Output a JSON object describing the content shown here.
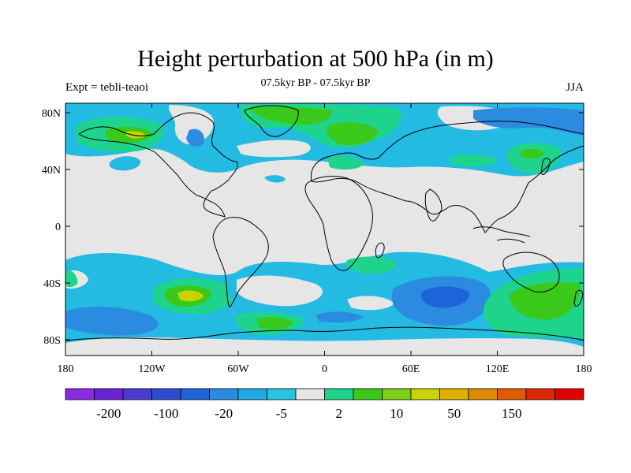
{
  "title": "Height perturbation at 500 hPa (in m)",
  "subtitle": "07.5kyr BP - 07.5kyr BP",
  "left_label": "Expt = tebli-teaoi",
  "right_label": "JJA",
  "y_ticks": [
    "80N",
    "40N",
    "0",
    "40S",
    "80S"
  ],
  "x_ticks": [
    "180",
    "120W",
    "60W",
    "0",
    "60E",
    "120E",
    "180"
  ],
  "colorbar": {
    "colors": [
      "#8a2be2",
      "#6a24d6",
      "#4b3bcf",
      "#2f4bd0",
      "#1e64d8",
      "#2b8be0",
      "#23a8e6",
      "#26c4e0",
      "#e6e6e6",
      "#1ed48c",
      "#3ac81a",
      "#7dcd14",
      "#c7d400",
      "#e0b000",
      "#e08a00",
      "#e05a00",
      "#e02800",
      "#e00000"
    ],
    "labels": [
      "-200",
      "-100",
      "-20",
      "-5",
      "2",
      "10",
      "50",
      "150"
    ]
  },
  "palette": {
    "cyan": "#24bbe2",
    "blue": "#2b8be0",
    "darkblue": "#1e64d8",
    "green": "#1ed48c",
    "lime": "#3ac81a",
    "yellowgreen": "#7dcd14",
    "yellow": "#c7d400",
    "gray": "#e6e6e6"
  }
}
